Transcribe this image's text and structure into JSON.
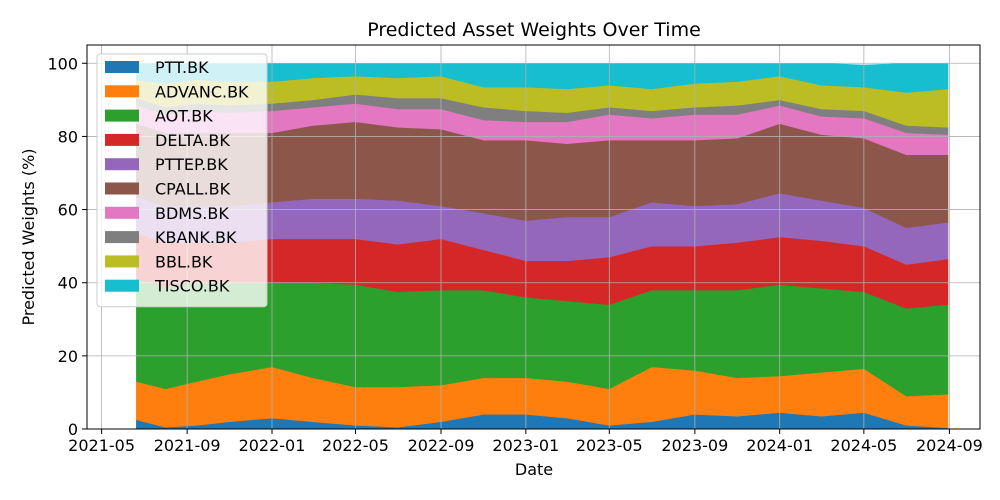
{
  "chart_data": {
    "type": "area",
    "stacked": true,
    "title": "Predicted Asset Weights Over Time",
    "xlabel": "Date",
    "ylabel": "Predicted Weights (%)",
    "x_ticks": [
      "2021-05",
      "2021-09",
      "2022-01",
      "2022-05",
      "2022-09",
      "2023-01",
      "2023-05",
      "2023-09",
      "2024-01",
      "2024-05",
      "2024-09"
    ],
    "y_ticks": [
      0,
      20,
      40,
      60,
      80,
      100
    ],
    "xlim": [
      "2021-04-10",
      "2024-10-15"
    ],
    "ylim": [
      0,
      105
    ],
    "grid": true,
    "legend_position": "top-left",
    "x": [
      "2021-06-20",
      "2021-08-01",
      "2021-09-15",
      "2021-11-01",
      "2022-01-01",
      "2022-03-01",
      "2022-05-01",
      "2022-07-01",
      "2022-09-01",
      "2022-11-01",
      "2023-01-01",
      "2023-03-01",
      "2023-05-01",
      "2023-07-01",
      "2023-09-01",
      "2023-11-01",
      "2024-01-01",
      "2024-03-01",
      "2024-05-01",
      "2024-07-01",
      "2024-08-30"
    ],
    "series": [
      {
        "name": "PTT.BK",
        "color": "#1f77b4",
        "values": [
          2.5,
          0.5,
          1.0,
          2.0,
          3.0,
          2.0,
          1.0,
          0.5,
          2.0,
          4.0,
          4.0,
          3.0,
          1.0,
          2.0,
          4.0,
          3.5,
          4.5,
          3.5,
          4.5,
          1.0,
          0.3
        ]
      },
      {
        "name": "ADVANC.BK",
        "color": "#ff7f0e",
        "values": [
          10.5,
          10.5,
          12.0,
          13.0,
          14.0,
          12.0,
          10.5,
          11.0,
          10.0,
          10.0,
          10.0,
          10.0,
          10.0,
          15.0,
          12.0,
          10.5,
          10.0,
          12.0,
          12.0,
          8.0,
          9.2
        ]
      },
      {
        "name": "AOT.BK",
        "color": "#2ca02c",
        "values": [
          28.0,
          28.0,
          27.0,
          25.0,
          23.0,
          26.0,
          28.0,
          26.0,
          26.0,
          24.0,
          22.0,
          22.0,
          23.0,
          21.0,
          22.0,
          24.0,
          25.0,
          23.0,
          21.0,
          24.0,
          24.5
        ]
      },
      {
        "name": "DELTA.BK",
        "color": "#d62728",
        "values": [
          12.5,
          12.0,
          11.0,
          11.0,
          12.0,
          12.0,
          12.5,
          13.0,
          14.0,
          11.0,
          10.0,
          11.0,
          13.0,
          12.0,
          12.0,
          13.0,
          13.0,
          13.0,
          12.5,
          12.0,
          12.5
        ]
      },
      {
        "name": "PTTEP.BK",
        "color": "#9467bd",
        "values": [
          10.0,
          10.0,
          10.0,
          10.0,
          10.0,
          11.0,
          11.0,
          12.0,
          9.0,
          10.0,
          11.0,
          12.0,
          11.0,
          12.0,
          11.0,
          10.5,
          12.0,
          11.0,
          10.5,
          10.0,
          10.0
        ]
      },
      {
        "name": "CPALL.BK",
        "color": "#8c564b",
        "values": [
          20.0,
          20.0,
          20.0,
          20.0,
          19.0,
          20.0,
          21.0,
          20.0,
          21.0,
          20.0,
          22.0,
          20.0,
          21.0,
          17.0,
          18.0,
          18.0,
          19.0,
          18.0,
          19.0,
          20.0,
          18.5
        ]
      },
      {
        "name": "BDMS.BK",
        "color": "#e377c2",
        "values": [
          5.0,
          5.0,
          6.0,
          5.5,
          6.0,
          5.0,
          5.0,
          5.0,
          5.5,
          5.5,
          5.0,
          6.0,
          7.0,
          6.0,
          7.0,
          6.5,
          5.0,
          5.0,
          5.5,
          6.0,
          5.5
        ]
      },
      {
        "name": "KBANK.BK",
        "color": "#7f7f7f",
        "values": [
          2.0,
          2.0,
          2.0,
          2.0,
          2.0,
          2.0,
          2.5,
          3.0,
          3.0,
          3.5,
          3.0,
          2.5,
          2.0,
          2.0,
          2.0,
          2.5,
          1.5,
          2.0,
          2.0,
          2.0,
          2.0
        ]
      },
      {
        "name": "BBL.BK",
        "color": "#bcbd22",
        "values": [
          5.0,
          6.5,
          6.5,
          6.5,
          6.0,
          6.0,
          5.0,
          5.5,
          6.0,
          5.5,
          6.5,
          6.5,
          6.0,
          6.0,
          6.5,
          6.5,
          6.5,
          6.5,
          6.5,
          9.0,
          10.5
        ]
      },
      {
        "name": "TISCO.BK",
        "color": "#17becf",
        "values": [
          4.5,
          5.5,
          4.5,
          5.0,
          5.0,
          4.0,
          3.5,
          4.0,
          3.5,
          6.5,
          6.5,
          7.0,
          6.0,
          7.0,
          5.5,
          5.0,
          3.5,
          6.0,
          6.0,
          8.0,
          7.0
        ]
      }
    ]
  }
}
